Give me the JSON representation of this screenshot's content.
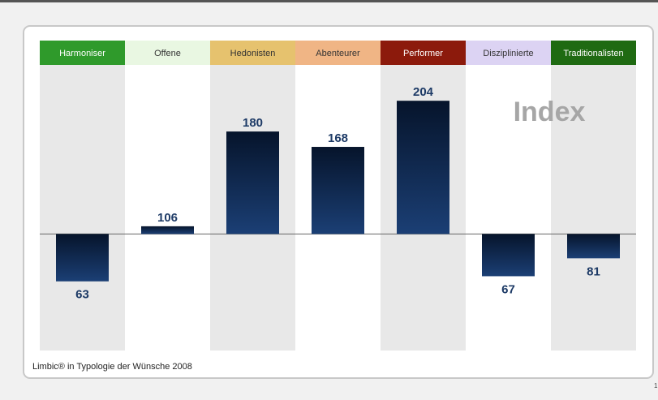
{
  "chart_data": {
    "type": "bar",
    "categories": [
      "Harmoniser",
      "Offene",
      "Hedonisten",
      "Abenteurer",
      "Performer",
      "Disziplinierte",
      "Traditionalisten"
    ],
    "values": [
      63,
      106,
      180,
      168,
      204,
      67,
      81
    ],
    "header_colors": [
      "#2f9a2b",
      "#e9f7e2",
      "#e6c26e",
      "#f0b585",
      "#8c1a0c",
      "#dcd3f3",
      "#1f6a12"
    ],
    "header_text_colors": [
      "#ffffff",
      "#333333",
      "#333333",
      "#333333",
      "#ffffff",
      "#333333",
      "#ffffff"
    ],
    "column_colors": [
      "#e8e8e8",
      "#ffffff",
      "#e8e8e8",
      "#ffffff",
      "#e8e8e8",
      "#ffffff",
      "#e8e8e8"
    ],
    "color": "#0d2a55",
    "baseline": 100,
    "ylim": [
      9,
      232
    ],
    "annotation": "Index",
    "source": "Limbic® in Typologie der Wünsche 2008",
    "page_number": "1"
  }
}
